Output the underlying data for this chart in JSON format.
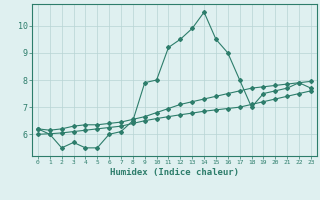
{
  "xlabel": "Humidex (Indice chaleur)",
  "x": [
    0,
    1,
    2,
    3,
    4,
    5,
    6,
    7,
    8,
    9,
    10,
    11,
    12,
    13,
    14,
    15,
    16,
    17,
    18,
    19,
    20,
    21,
    22,
    23
  ],
  "line1": [
    6.2,
    6.0,
    5.5,
    5.7,
    5.5,
    5.5,
    6.0,
    6.1,
    6.5,
    7.9,
    8.0,
    9.2,
    9.5,
    9.9,
    10.5,
    9.5,
    9.0,
    8.0,
    7.0,
    7.5,
    7.6,
    7.7,
    7.9,
    7.7
  ],
  "line2": [
    6.2,
    6.15,
    6.2,
    6.3,
    6.35,
    6.35,
    6.4,
    6.45,
    6.55,
    6.65,
    6.8,
    6.95,
    7.1,
    7.2,
    7.3,
    7.4,
    7.5,
    7.6,
    7.7,
    7.75,
    7.8,
    7.85,
    7.9,
    7.95
  ],
  "line3": [
    6.0,
    6.02,
    6.05,
    6.1,
    6.15,
    6.2,
    6.25,
    6.3,
    6.4,
    6.5,
    6.58,
    6.65,
    6.72,
    6.78,
    6.85,
    6.9,
    6.95,
    7.0,
    7.1,
    7.2,
    7.3,
    7.4,
    7.5,
    7.6
  ],
  "line_color": "#2d7d6b",
  "bg_color": "#dff0f0",
  "grid_color": "#b8d4d4",
  "ylim": [
    5.2,
    10.8
  ],
  "yticks": [
    6,
    7,
    8,
    9,
    10
  ],
  "xticks": [
    0,
    1,
    2,
    3,
    4,
    5,
    6,
    7,
    8,
    9,
    10,
    11,
    12,
    13,
    14,
    15,
    16,
    17,
    18,
    19,
    20,
    21,
    22,
    23
  ],
  "marker": "D",
  "markersize": 2.0,
  "linewidth": 0.8
}
